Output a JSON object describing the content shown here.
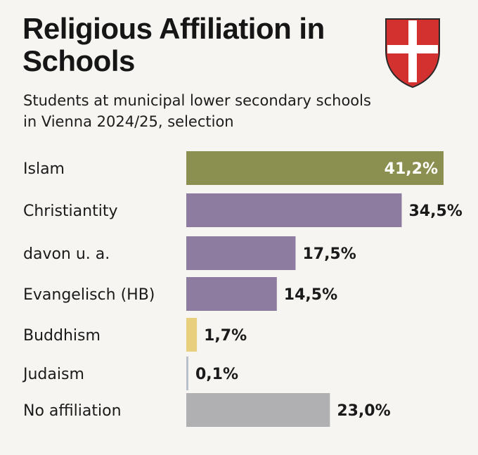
{
  "title": "Religious Affiliation in Schools",
  "subtitle": "Students at municipal lower secondary schools in Vienna 2024/25, selection",
  "crest_icon": "vienna-coat-of-arms-icon",
  "chart_data": {
    "type": "bar",
    "orientation": "horizontal",
    "categories": [
      "Islam",
      "Christiantity",
      "davon u. a.",
      "Evangelisch (HB)",
      "Buddhism",
      "Judaism",
      "No affiliation"
    ],
    "values": [
      41.2,
      34.5,
      17.5,
      14.5,
      1.7,
      0.1,
      23.0
    ],
    "value_labels": [
      "41,2%",
      "34,5%",
      "17,5%",
      "14,5%",
      "1,7%",
      "0,1%",
      "23,0%"
    ],
    "colors": [
      "#8b8f4f",
      "#8e7ba0",
      "#8e7ba0",
      "#8e7ba0",
      "#e7cf7e",
      "#b9bfcb",
      "#b0b0b3"
    ],
    "unit": "%",
    "xlim": [
      0,
      41.2
    ],
    "grid": false,
    "legend": "none"
  }
}
